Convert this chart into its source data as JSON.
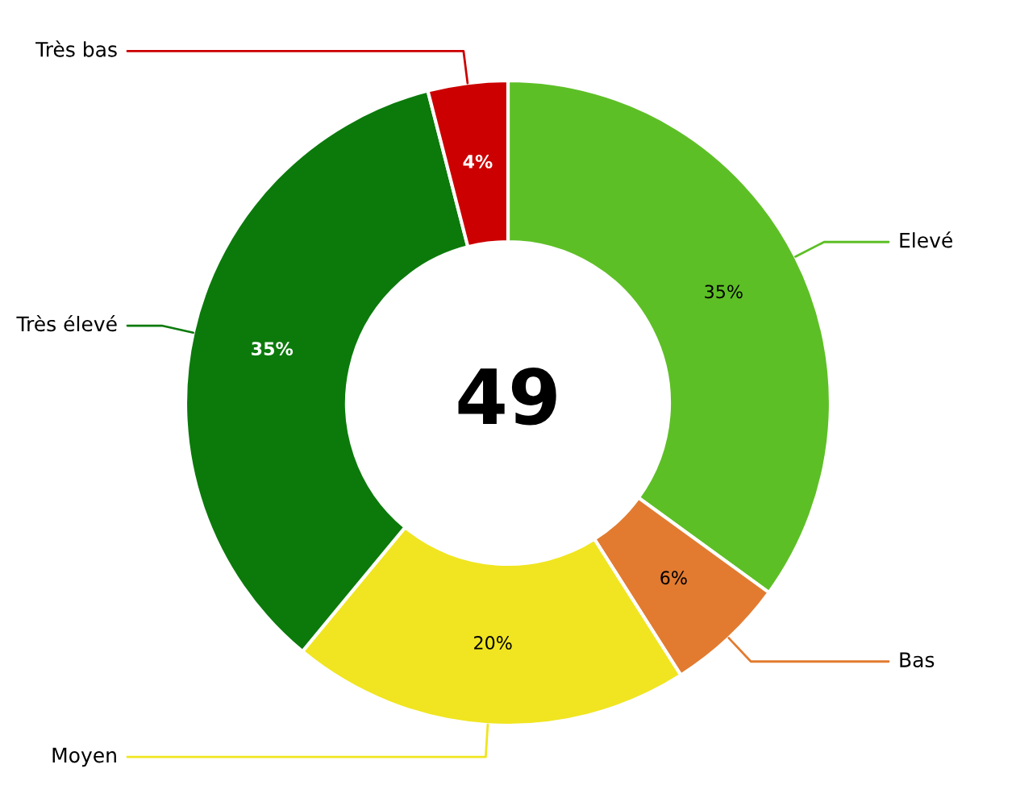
{
  "chart_data": {
    "type": "donut",
    "categories": [
      "Elevé",
      "Bas",
      "Moyen",
      "Très élevé",
      "Très bas"
    ],
    "values": [
      35,
      6,
      20,
      35,
      4
    ],
    "value_labels": [
      "35%",
      "6%",
      "20%",
      "35%",
      "4%"
    ],
    "colors": [
      "#5dbf26",
      "#e27b30",
      "#f0e520",
      "#0b7a0b",
      "#cc0000"
    ],
    "annotations": [
      "49"
    ],
    "legend": false
  }
}
